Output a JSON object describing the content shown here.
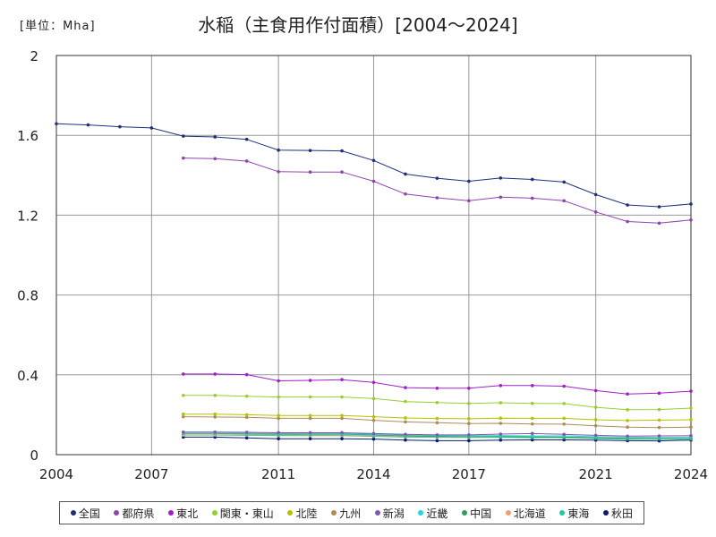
{
  "unit_label": "[単位：Mha]",
  "title": "水稲（主食用作付面積）[2004～2024]",
  "chart_data": {
    "type": "line",
    "title": "水稲（主食用作付面積）[2004～2024]",
    "ylabel": "[単位：Mha]",
    "xlim": [
      2004,
      2024
    ],
    "ylim": [
      0,
      2
    ],
    "x_ticks": [
      2004,
      2007,
      2011,
      2014,
      2017,
      2021,
      2024
    ],
    "y_ticks": [
      0,
      0.4,
      0.8,
      1.2,
      1.6,
      2
    ],
    "y_tick_labels": [
      "0",
      "0.4",
      "0.8",
      "1.2",
      "1.6",
      "2"
    ],
    "grid": true,
    "legend_position": "bottom",
    "series": [
      {
        "name": "全国",
        "color": "#1f2f7a",
        "x": [
          2004,
          2005,
          2006,
          2007,
          2008,
          2009,
          2010,
          2011,
          2012,
          2013,
          2014,
          2015,
          2016,
          2017,
          2018,
          2019,
          2020,
          2021,
          2022,
          2023,
          2024
        ],
        "values": [
          1.658,
          1.652,
          1.643,
          1.637,
          1.596,
          1.592,
          1.58,
          1.526,
          1.524,
          1.522,
          1.474,
          1.406,
          1.385,
          1.37,
          1.386,
          1.379,
          1.366,
          1.303,
          1.251,
          1.242,
          1.256
        ]
      },
      {
        "name": "都府県",
        "color": "#8e44ad",
        "x": [
          2008,
          2009,
          2010,
          2011,
          2012,
          2013,
          2014,
          2015,
          2016,
          2017,
          2018,
          2019,
          2020,
          2021,
          2022,
          2023,
          2024
        ],
        "values": [
          1.486,
          1.483,
          1.471,
          1.418,
          1.416,
          1.416,
          1.37,
          1.306,
          1.287,
          1.272,
          1.29,
          1.285,
          1.272,
          1.216,
          1.168,
          1.16,
          1.176
        ]
      },
      {
        "name": "東北",
        "color": "#a020c8",
        "x": [
          2008,
          2009,
          2010,
          2011,
          2012,
          2013,
          2014,
          2015,
          2016,
          2017,
          2018,
          2019,
          2020,
          2021,
          2022,
          2023,
          2024
        ],
        "values": [
          0.404,
          0.404,
          0.401,
          0.37,
          0.372,
          0.376,
          0.362,
          0.336,
          0.333,
          0.333,
          0.346,
          0.346,
          0.343,
          0.321,
          0.304,
          0.308,
          0.318
        ]
      },
      {
        "name": "関東・東山",
        "color": "#9acd32",
        "x": [
          2008,
          2009,
          2010,
          2011,
          2012,
          2013,
          2014,
          2015,
          2016,
          2017,
          2018,
          2019,
          2020,
          2021,
          2022,
          2023,
          2024
        ],
        "values": [
          0.297,
          0.297,
          0.293,
          0.289,
          0.289,
          0.289,
          0.281,
          0.266,
          0.261,
          0.257,
          0.26,
          0.257,
          0.256,
          0.237,
          0.225,
          0.226,
          0.233
        ]
      },
      {
        "name": "北陸",
        "color": "#b5c200",
        "x": [
          2008,
          2009,
          2010,
          2011,
          2012,
          2013,
          2014,
          2015,
          2016,
          2017,
          2018,
          2019,
          2020,
          2021,
          2022,
          2023,
          2024
        ],
        "values": [
          0.203,
          0.203,
          0.2,
          0.196,
          0.196,
          0.196,
          0.19,
          0.184,
          0.181,
          0.18,
          0.183,
          0.182,
          0.182,
          0.175,
          0.171,
          0.173,
          0.175
        ]
      },
      {
        "name": "九州",
        "color": "#b08a5a",
        "x": [
          2008,
          2009,
          2010,
          2011,
          2012,
          2013,
          2014,
          2015,
          2016,
          2017,
          2018,
          2019,
          2020,
          2021,
          2022,
          2023,
          2024
        ],
        "values": [
          0.19,
          0.189,
          0.187,
          0.182,
          0.182,
          0.182,
          0.172,
          0.164,
          0.16,
          0.156,
          0.157,
          0.154,
          0.153,
          0.145,
          0.138,
          0.136,
          0.138
        ]
      },
      {
        "name": "新潟",
        "color": "#7d5aa8",
        "x": [
          2008,
          2009,
          2010,
          2011,
          2012,
          2013,
          2014,
          2015,
          2016,
          2017,
          2018,
          2019,
          2020,
          2021,
          2022,
          2023,
          2024
        ],
        "values": [
          0.113,
          0.113,
          0.112,
          0.11,
          0.11,
          0.11,
          0.106,
          0.102,
          0.099,
          0.099,
          0.103,
          0.106,
          0.102,
          0.097,
          0.093,
          0.094,
          0.095
        ]
      },
      {
        "name": "近畿",
        "color": "#22d4e0",
        "x": [
          2008,
          2009,
          2010,
          2011,
          2012,
          2013,
          2014,
          2015,
          2016,
          2017,
          2018,
          2019,
          2020,
          2021,
          2022,
          2023,
          2024
        ],
        "values": [
          0.108,
          0.108,
          0.107,
          0.106,
          0.106,
          0.106,
          0.102,
          0.098,
          0.096,
          0.095,
          0.095,
          0.094,
          0.094,
          0.09,
          0.088,
          0.087,
          0.088
        ]
      },
      {
        "name": "中国",
        "color": "#2e9e5b",
        "x": [
          2008,
          2009,
          2010,
          2011,
          2012,
          2013,
          2014,
          2015,
          2016,
          2017,
          2018,
          2019,
          2020,
          2021,
          2022,
          2023,
          2024
        ],
        "values": [
          0.106,
          0.106,
          0.104,
          0.103,
          0.103,
          0.103,
          0.099,
          0.094,
          0.092,
          0.09,
          0.091,
          0.089,
          0.088,
          0.084,
          0.081,
          0.08,
          0.081
        ]
      },
      {
        "name": "北海道",
        "color": "#f0a070",
        "x": [
          2008,
          2009,
          2010,
          2011,
          2012,
          2013,
          2014,
          2015,
          2016,
          2017,
          2018,
          2019,
          2020,
          2021,
          2022,
          2023,
          2024
        ],
        "values": [
          0.1,
          0.1,
          0.1,
          0.099,
          0.098,
          0.098,
          0.096,
          0.091,
          0.09,
          0.089,
          0.09,
          0.089,
          0.088,
          0.085,
          0.082,
          0.081,
          0.08
        ]
      },
      {
        "name": "東海",
        "color": "#20c9a0",
        "x": [
          2008,
          2009,
          2010,
          2011,
          2012,
          2013,
          2014,
          2015,
          2016,
          2017,
          2018,
          2019,
          2020,
          2021,
          2022,
          2023,
          2024
        ],
        "values": [
          0.098,
          0.098,
          0.097,
          0.095,
          0.095,
          0.095,
          0.092,
          0.088,
          0.087,
          0.086,
          0.087,
          0.085,
          0.085,
          0.081,
          0.078,
          0.078,
          0.078
        ]
      },
      {
        "name": "秋田",
        "color": "#0b1a6e",
        "x": [
          2008,
          2009,
          2010,
          2011,
          2012,
          2013,
          2014,
          2015,
          2016,
          2017,
          2018,
          2019,
          2020,
          2021,
          2022,
          2023,
          2024
        ],
        "values": [
          0.088,
          0.088,
          0.084,
          0.08,
          0.08,
          0.08,
          0.078,
          0.073,
          0.07,
          0.07,
          0.073,
          0.074,
          0.074,
          0.073,
          0.07,
          0.069,
          0.073
        ]
      }
    ]
  }
}
